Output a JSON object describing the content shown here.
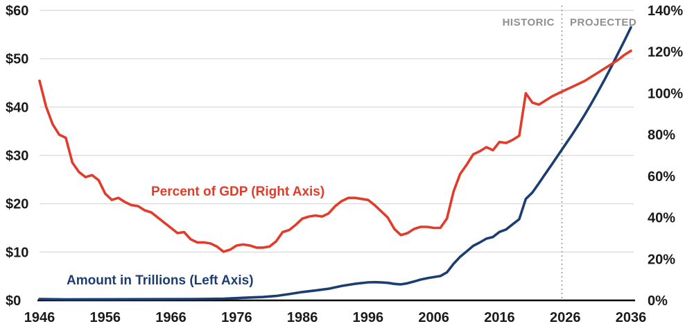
{
  "chart_data": {
    "type": "line",
    "title": "",
    "x_range": [
      1946,
      2036
    ],
    "grid": true,
    "divider": {
      "year": 2025.5,
      "left_label": "HISTORIC",
      "right_label": "PROJECTED"
    },
    "colors": {
      "grid": "#d6d6d6",
      "divider": "#9a9a9a",
      "axis_line": "#000000",
      "axis_text": "#1a1a1a",
      "phase_text": "#8f8f8f",
      "red": "#e23b2a",
      "navy": "#1c3d72"
    },
    "left_axis": {
      "min": 0,
      "max": 60,
      "ticks": [
        {
          "label": "$60",
          "value": 60
        },
        {
          "label": "$50",
          "value": 50
        },
        {
          "label": "$40",
          "value": 40
        },
        {
          "label": "$30",
          "value": 30
        },
        {
          "label": "$20",
          "value": 20
        },
        {
          "label": "$10",
          "value": 10
        },
        {
          "label": "$0",
          "value": 0
        }
      ]
    },
    "right_axis": {
      "min": 0,
      "max": 140,
      "ticks": [
        {
          "label": "140%",
          "value": 140
        },
        {
          "label": "120%",
          "value": 120
        },
        {
          "label": "100%",
          "value": 100
        },
        {
          "label": "80%",
          "value": 80
        },
        {
          "label": "60%",
          "value": 60
        },
        {
          "label": "40%",
          "value": 40
        },
        {
          "label": "20%",
          "value": 20
        },
        {
          "label": "0%",
          "value": 0
        }
      ]
    },
    "x_axis": {
      "ticks": [
        {
          "label": "1946",
          "value": 1946
        },
        {
          "label": "1956",
          "value": 1956
        },
        {
          "label": "1966",
          "value": 1966
        },
        {
          "label": "1976",
          "value": 1976
        },
        {
          "label": "1986",
          "value": 1986
        },
        {
          "label": "1996",
          "value": 1996
        },
        {
          "label": "2006",
          "value": 2006
        },
        {
          "label": "2016",
          "value": 2016
        },
        {
          "label": "2026",
          "value": 2026
        },
        {
          "label": "2036",
          "value": 2036
        }
      ]
    },
    "series": [
      {
        "name": "Percent of GDP (Right Axis)",
        "data_name": "percent-gdp-line",
        "axis": "right",
        "color": "#e23b2a",
        "points": [
          [
            1946,
            106
          ],
          [
            1947,
            93.5
          ],
          [
            1948,
            85
          ],
          [
            1949,
            80
          ],
          [
            1950,
            78.5
          ],
          [
            1951,
            66.5
          ],
          [
            1952,
            62
          ],
          [
            1953,
            59.5
          ],
          [
            1954,
            60.5
          ],
          [
            1955,
            58
          ],
          [
            1956,
            51.5
          ],
          [
            1957,
            48.5
          ],
          [
            1958,
            49.5
          ],
          [
            1959,
            47.5
          ],
          [
            1960,
            46
          ],
          [
            1961,
            45.5
          ],
          [
            1962,
            43.5
          ],
          [
            1963,
            42.5
          ],
          [
            1964,
            40
          ],
          [
            1965,
            37.5
          ],
          [
            1966,
            35
          ],
          [
            1967,
            32.5
          ],
          [
            1968,
            33
          ],
          [
            1969,
            29.5
          ],
          [
            1970,
            28
          ],
          [
            1971,
            28
          ],
          [
            1972,
            27.5
          ],
          [
            1973,
            26
          ],
          [
            1974,
            23.5
          ],
          [
            1975,
            24.5
          ],
          [
            1976,
            26.5
          ],
          [
            1977,
            27
          ],
          [
            1978,
            26.5
          ],
          [
            1979,
            25.5
          ],
          [
            1980,
            25.5
          ],
          [
            1981,
            26
          ],
          [
            1982,
            28.5
          ],
          [
            1983,
            33
          ],
          [
            1984,
            34
          ],
          [
            1985,
            36.5
          ],
          [
            1986,
            39.5
          ],
          [
            1987,
            40.5
          ],
          [
            1988,
            41
          ],
          [
            1989,
            40.5
          ],
          [
            1990,
            42
          ],
          [
            1991,
            45.5
          ],
          [
            1992,
            48
          ],
          [
            1993,
            49.5
          ],
          [
            1994,
            49.5
          ],
          [
            1995,
            49
          ],
          [
            1996,
            48.5
          ],
          [
            1997,
            46
          ],
          [
            1998,
            43
          ],
          [
            1999,
            40
          ],
          [
            2000,
            34.5
          ],
          [
            2001,
            31.5
          ],
          [
            2002,
            32.5
          ],
          [
            2003,
            34.5
          ],
          [
            2004,
            35.5
          ],
          [
            2005,
            35.5
          ],
          [
            2006,
            35
          ],
          [
            2007,
            35
          ],
          [
            2008,
            39.5
          ],
          [
            2009,
            52.5
          ],
          [
            2010,
            61
          ],
          [
            2011,
            65.5
          ],
          [
            2012,
            70.5
          ],
          [
            2013,
            72
          ],
          [
            2014,
            74
          ],
          [
            2015,
            72.5
          ],
          [
            2016,
            76.5
          ],
          [
            2017,
            76
          ],
          [
            2018,
            77.5
          ],
          [
            2019,
            79.5
          ],
          [
            2020,
            100
          ],
          [
            2021,
            95.5
          ],
          [
            2022,
            94.5
          ],
          [
            2023,
            96.5
          ],
          [
            2024,
            98.5
          ],
          [
            2025,
            100
          ],
          [
            2026,
            101.5
          ],
          [
            2027,
            103
          ],
          [
            2028,
            104.5
          ],
          [
            2029,
            106
          ],
          [
            2030,
            108
          ],
          [
            2031,
            110
          ],
          [
            2032,
            112
          ],
          [
            2033,
            114
          ],
          [
            2034,
            116
          ],
          [
            2035,
            118.5
          ],
          [
            2036,
            120.5
          ]
        ]
      },
      {
        "name": "Amount in Trillions (Left Axis)",
        "data_name": "amount-trillions-line",
        "axis": "left",
        "color": "#1c3d72",
        "points": [
          [
            1946,
            0.27
          ],
          [
            1950,
            0.22
          ],
          [
            1955,
            0.23
          ],
          [
            1960,
            0.24
          ],
          [
            1965,
            0.26
          ],
          [
            1970,
            0.28
          ],
          [
            1972,
            0.32
          ],
          [
            1974,
            0.35
          ],
          [
            1976,
            0.48
          ],
          [
            1978,
            0.61
          ],
          [
            1980,
            0.71
          ],
          [
            1982,
            0.92
          ],
          [
            1984,
            1.31
          ],
          [
            1986,
            1.74
          ],
          [
            1988,
            2.05
          ],
          [
            1990,
            2.41
          ],
          [
            1992,
            3.0
          ],
          [
            1994,
            3.43
          ],
          [
            1996,
            3.73
          ],
          [
            1997,
            3.77
          ],
          [
            1998,
            3.72
          ],
          [
            1999,
            3.63
          ],
          [
            2000,
            3.41
          ],
          [
            2001,
            3.32
          ],
          [
            2002,
            3.54
          ],
          [
            2003,
            3.91
          ],
          [
            2004,
            4.3
          ],
          [
            2005,
            4.59
          ],
          [
            2006,
            4.83
          ],
          [
            2007,
            5.04
          ],
          [
            2008,
            5.8
          ],
          [
            2009,
            7.55
          ],
          [
            2010,
            9.02
          ],
          [
            2011,
            10.13
          ],
          [
            2012,
            11.28
          ],
          [
            2013,
            11.98
          ],
          [
            2014,
            12.78
          ],
          [
            2015,
            13.12
          ],
          [
            2016,
            14.17
          ],
          [
            2017,
            14.67
          ],
          [
            2018,
            15.75
          ],
          [
            2019,
            16.8
          ],
          [
            2020,
            21.0
          ],
          [
            2021,
            22.3
          ],
          [
            2022,
            24.25
          ],
          [
            2023,
            26.24
          ],
          [
            2024,
            28.2
          ],
          [
            2025,
            30.2
          ],
          [
            2026,
            32.2
          ],
          [
            2027,
            34.2
          ],
          [
            2028,
            36.3
          ],
          [
            2029,
            38.5
          ],
          [
            2030,
            40.8
          ],
          [
            2031,
            43.2
          ],
          [
            2032,
            45.7
          ],
          [
            2033,
            48.3
          ],
          [
            2034,
            51.0
          ],
          [
            2035,
            53.7
          ],
          [
            2036,
            56.5
          ]
        ]
      }
    ]
  }
}
